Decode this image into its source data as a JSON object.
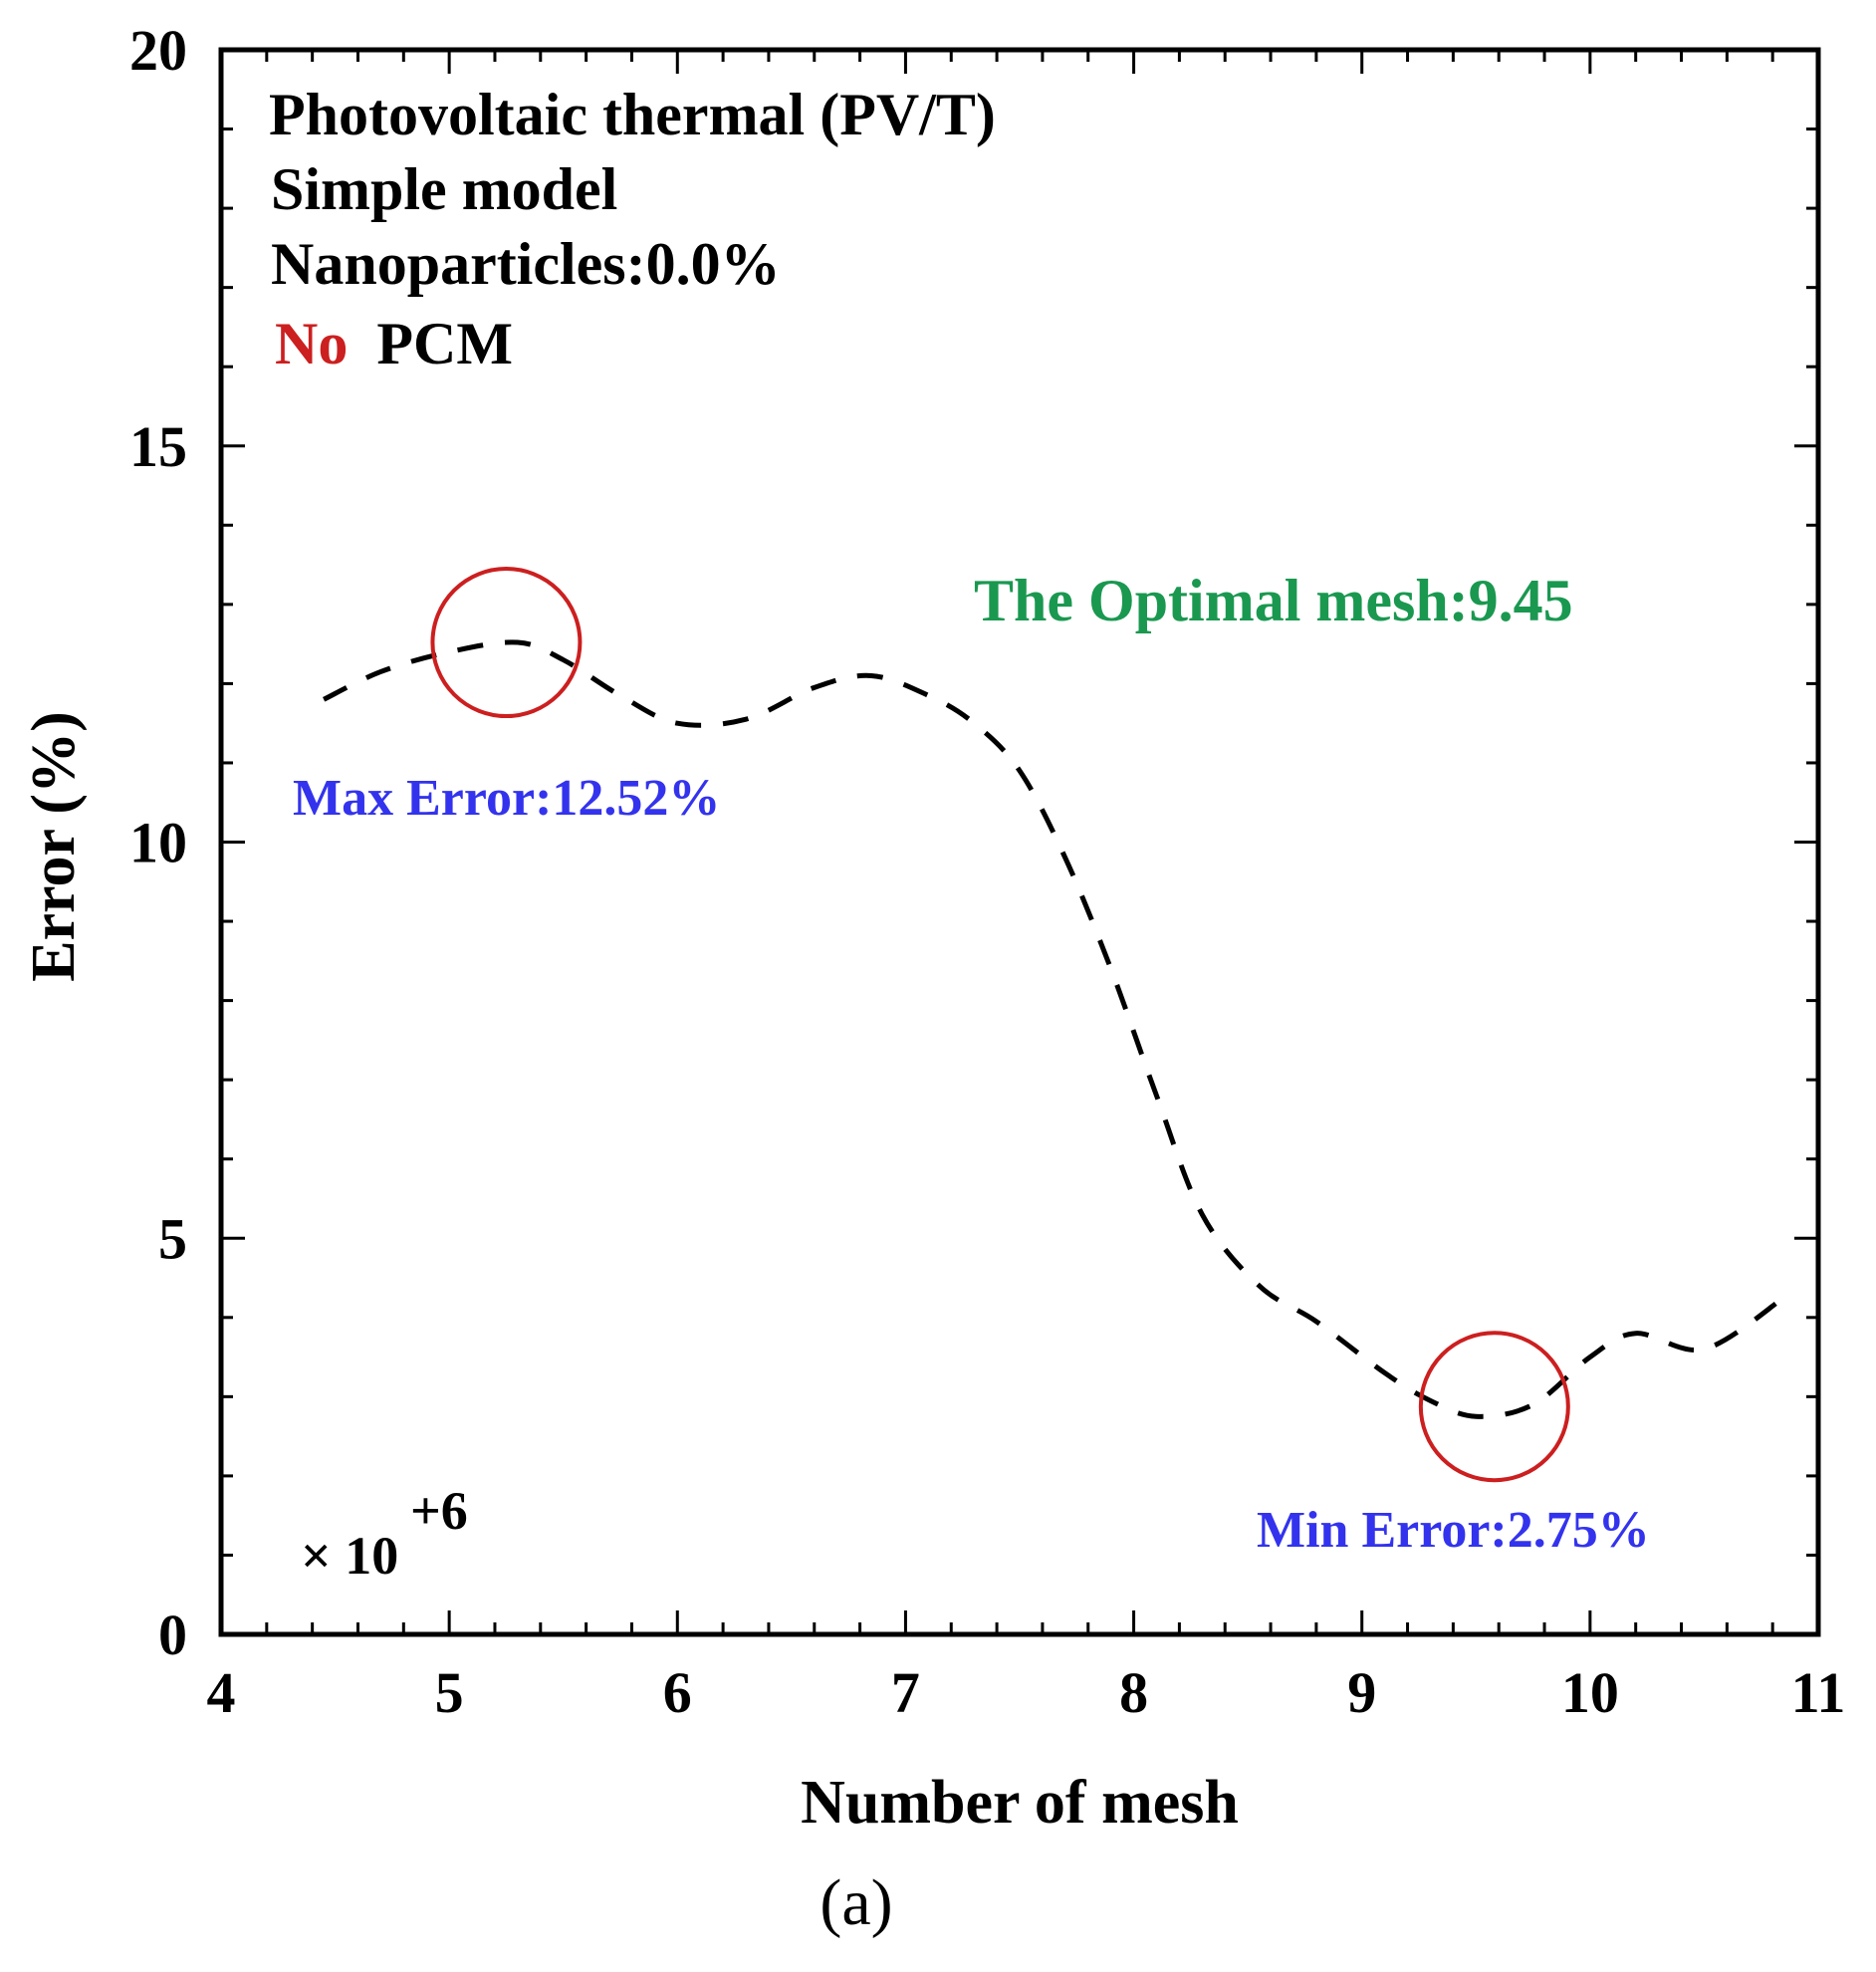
{
  "chart_data": {
    "type": "line",
    "title": "",
    "xlabel": "Number of mesh",
    "ylabel": "Error (%)",
    "x_multiplier": "× 10",
    "x_multiplier_exponent": "+6",
    "panel_label": "(a)",
    "xlim": [
      4,
      11
    ],
    "ylim": [
      0,
      20
    ],
    "x_ticks": [
      4,
      5,
      6,
      7,
      8,
      9,
      10,
      11
    ],
    "y_ticks": [
      0,
      5,
      10,
      15,
      20
    ],
    "x_tick_labels": [
      "4",
      "5",
      "6",
      "7",
      "8",
      "9",
      "10",
      "11"
    ],
    "y_tick_labels": [
      "0",
      "5",
      "10",
      "15",
      "20"
    ],
    "line_style": "dashed",
    "series": [
      {
        "color": "#000000",
        "x": [
          4.45,
          4.7,
          5.0,
          5.3,
          5.5,
          5.75,
          6.0,
          6.3,
          6.6,
          6.85,
          7.1,
          7.3,
          7.5,
          7.7,
          7.9,
          8.1,
          8.3,
          8.55,
          8.8,
          9.1,
          9.3,
          9.5,
          9.75,
          10.0,
          10.2,
          10.5,
          10.85
        ],
        "y": [
          11.8,
          12.15,
          12.4,
          12.52,
          12.3,
          11.85,
          11.5,
          11.55,
          11.95,
          12.1,
          11.85,
          11.5,
          10.9,
          9.8,
          8.4,
          6.8,
          5.3,
          4.4,
          3.95,
          3.3,
          2.95,
          2.75,
          2.9,
          3.5,
          3.8,
          3.6,
          4.25
        ]
      }
    ],
    "legend_text": {
      "line1": "Photovoltaic thermal (PV/T)",
      "line2": "Simple model",
      "line3": "Nanoparticles:0.0%",
      "line4_red": "No",
      "line4_black": "PCM"
    },
    "annotations": {
      "optimal": {
        "text": "The Optimal mesh:9.45",
        "color": "#1a9850"
      },
      "max_error": {
        "text": "Max Error:12.52%",
        "color": "#3333ee",
        "x": 5.25,
        "y": 12.52
      },
      "min_error": {
        "text": "Min Error:2.75%",
        "color": "#3333ee",
        "x": 9.45,
        "y": 2.75
      }
    },
    "highlight_color": "#cc1f1f"
  }
}
